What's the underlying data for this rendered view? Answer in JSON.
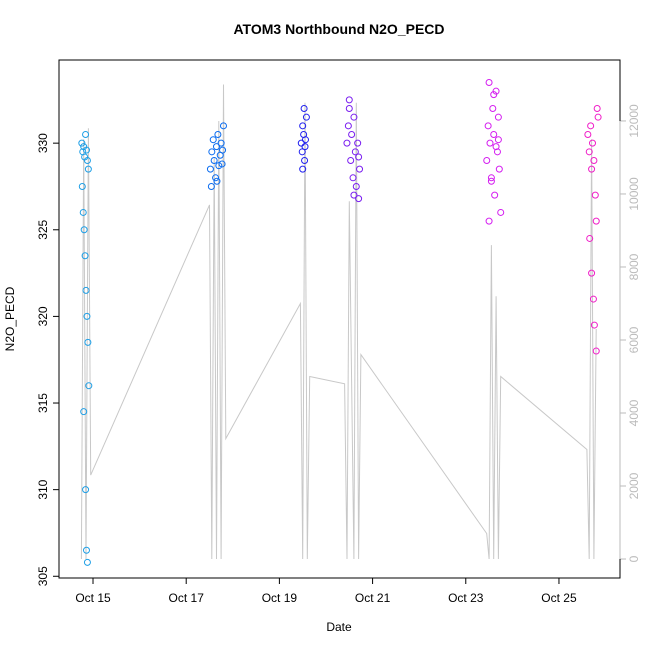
{
  "chart_data": {
    "type": "scatter",
    "title": "ATOM3 Northbound N2O_PECD",
    "x_label": "Date",
    "y_label": "N2O_PECD",
    "xlim": [
      14.27,
      26.31
    ],
    "xticks": [
      {
        "value": 15,
        "label": "Oct 15"
      },
      {
        "value": 17,
        "label": "Oct 17"
      },
      {
        "value": 19,
        "label": "Oct 19"
      },
      {
        "value": 21,
        "label": "Oct 21"
      },
      {
        "value": 23,
        "label": "Oct 23"
      },
      {
        "value": 25,
        "label": "Oct 25"
      }
    ],
    "ylim": [
      304.9,
      334.8
    ],
    "yticks": [
      305,
      310,
      315,
      320,
      325,
      330
    ],
    "y2lim": [
      -520,
      13670
    ],
    "y2ticks": [
      0,
      2000,
      4000,
      6000,
      8000,
      10000,
      12000
    ],
    "series": [
      {
        "type": "line",
        "axis": "y2",
        "color": "#c8c8c8",
        "x": [
          14.75,
          14.8,
          14.85,
          14.9,
          14.95,
          17.5,
          17.55,
          17.6,
          17.65,
          17.7,
          17.75,
          17.8,
          17.85,
          19.45,
          19.5,
          19.55,
          19.6,
          19.65,
          20.4,
          20.45,
          20.5,
          20.6,
          20.65,
          20.7,
          20.75,
          23.45,
          23.5,
          23.55,
          23.6,
          23.65,
          23.7,
          23.75,
          25.6,
          25.65,
          25.7,
          25.75,
          25.8
        ],
        "values": [
          0,
          11500,
          0,
          11800,
          2300,
          9700,
          0,
          11000,
          0,
          12000,
          0,
          13000,
          3300,
          7000,
          0,
          12500,
          0,
          5000,
          4800,
          0,
          9800,
          0,
          12500,
          0,
          5600,
          700,
          0,
          8600,
          0,
          7200,
          0,
          5000,
          3000,
          0,
          11500,
          0,
          6300
        ]
      },
      {
        "color": "#1e9fe6",
        "x": [
          14.76,
          14.78,
          14.8,
          14.82,
          14.84,
          14.86,
          14.88,
          14.9,
          14.77,
          14.79,
          14.81,
          14.83,
          14.85,
          14.87,
          14.89,
          14.91,
          14.8,
          14.84,
          14.86,
          14.88
        ],
        "values": [
          330,
          329.5,
          329.8,
          329.2,
          330.5,
          329.6,
          329,
          328.5,
          327.5,
          326,
          325,
          323.5,
          321.5,
          320,
          318.5,
          316,
          314.5,
          310,
          306.5,
          305.8
        ]
      },
      {
        "color": "#0a6cf0",
        "x": [
          17.52,
          17.55,
          17.58,
          17.6,
          17.63,
          17.65,
          17.68,
          17.7,
          17.73,
          17.75,
          17.78,
          17.8,
          17.54,
          17.66,
          17.77
        ],
        "values": [
          328.5,
          329.5,
          330.2,
          329,
          328,
          329.8,
          330.5,
          328.7,
          329.3,
          330,
          329.6,
          331,
          327.5,
          327.8,
          328.8
        ]
      },
      {
        "color": "#2020f0",
        "x": [
          19.47,
          19.49,
          19.5,
          19.52,
          19.54,
          19.56,
          19.58,
          19.5,
          19.53,
          19.55
        ],
        "values": [
          330,
          329.5,
          331,
          330.5,
          329,
          330.2,
          331.5,
          328.5,
          332,
          329.8
        ]
      },
      {
        "color": "#7a1ef0",
        "x": [
          20.45,
          20.48,
          20.5,
          20.53,
          20.55,
          20.58,
          20.6,
          20.63,
          20.65,
          20.68,
          20.7,
          20.72,
          20.5,
          20.6,
          20.7
        ],
        "values": [
          330,
          331,
          332.5,
          329,
          330.5,
          328,
          331.5,
          329.5,
          327.5,
          330,
          326.8,
          328.5,
          332,
          327,
          329.2
        ]
      },
      {
        "color": "#d41ef0",
        "x": [
          23.45,
          23.48,
          23.5,
          23.52,
          23.55,
          23.58,
          23.6,
          23.62,
          23.65,
          23.68,
          23.7,
          23.72,
          23.75,
          23.5,
          23.6,
          23.7,
          23.55,
          23.65
        ],
        "values": [
          329,
          331,
          333.5,
          330,
          328,
          332,
          330.5,
          327,
          333,
          329.5,
          331.5,
          328.5,
          326,
          325.5,
          332.8,
          330.2,
          327.8,
          329.8
        ]
      },
      {
        "color": "#f01ec8",
        "x": [
          25.62,
          25.65,
          25.68,
          25.7,
          25.72,
          25.75,
          25.78,
          25.8,
          25.82,
          25.66,
          25.7,
          25.74,
          25.76,
          25.8,
          25.84
        ],
        "values": [
          330.5,
          329.5,
          331,
          328.5,
          330,
          329,
          327,
          325.5,
          332,
          324.5,
          322.5,
          321,
          319.5,
          318,
          331.5
        ]
      }
    ]
  }
}
